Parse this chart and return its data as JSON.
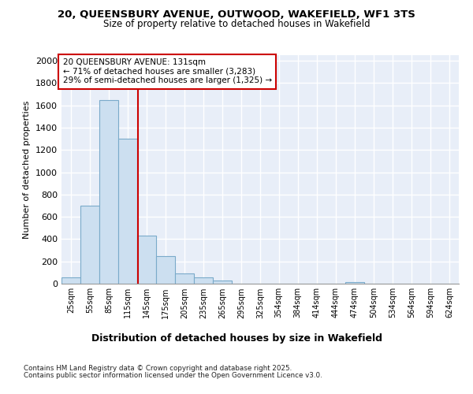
{
  "title_line1": "20, QUEENSBURY AVENUE, OUTWOOD, WAKEFIELD, WF1 3TS",
  "title_line2": "Size of property relative to detached houses in Wakefield",
  "xlabel": "Distribution of detached houses by size in Wakefield",
  "ylabel": "Number of detached properties",
  "footer_line1": "Contains HM Land Registry data © Crown copyright and database right 2025.",
  "footer_line2": "Contains public sector information licensed under the Open Government Licence v3.0.",
  "annotation_line1": "20 QUEENSBURY AVENUE: 131sqm",
  "annotation_line2": "← 71% of detached houses are smaller (3,283)",
  "annotation_line3": "29% of semi-detached houses are larger (1,325) →",
  "property_size": 131,
  "bar_color": "#ccdff0",
  "bar_edge_color": "#7aaaca",
  "vline_color": "#cc0000",
  "annotation_box_edgecolor": "#cc0000",
  "categories": [
    "25sqm",
    "55sqm",
    "85sqm",
    "115sqm",
    "145sqm",
    "175sqm",
    "205sqm",
    "235sqm",
    "265sqm",
    "295sqm",
    "325sqm",
    "354sqm",
    "384sqm",
    "414sqm",
    "444sqm",
    "474sqm",
    "504sqm",
    "534sqm",
    "564sqm",
    "594sqm",
    "624sqm"
  ],
  "bin_left": [
    10,
    40,
    70,
    100,
    130,
    160,
    190,
    220,
    250,
    280,
    310,
    339,
    369,
    399,
    429,
    459,
    489,
    519,
    549,
    579,
    609
  ],
  "bin_right": [
    40,
    70,
    100,
    130,
    160,
    190,
    220,
    250,
    280,
    310,
    339,
    369,
    399,
    429,
    459,
    489,
    519,
    549,
    579,
    609,
    639
  ],
  "values": [
    60,
    700,
    1650,
    1300,
    430,
    250,
    90,
    55,
    30,
    0,
    0,
    0,
    0,
    0,
    0,
    15,
    0,
    0,
    0,
    0,
    0
  ],
  "ylim": [
    0,
    2050
  ],
  "yticks": [
    0,
    200,
    400,
    600,
    800,
    1000,
    1200,
    1400,
    1600,
    1800,
    2000
  ],
  "background_color": "#e8eef8",
  "grid_color": "#ffffff",
  "fig_bg": "#ffffff"
}
